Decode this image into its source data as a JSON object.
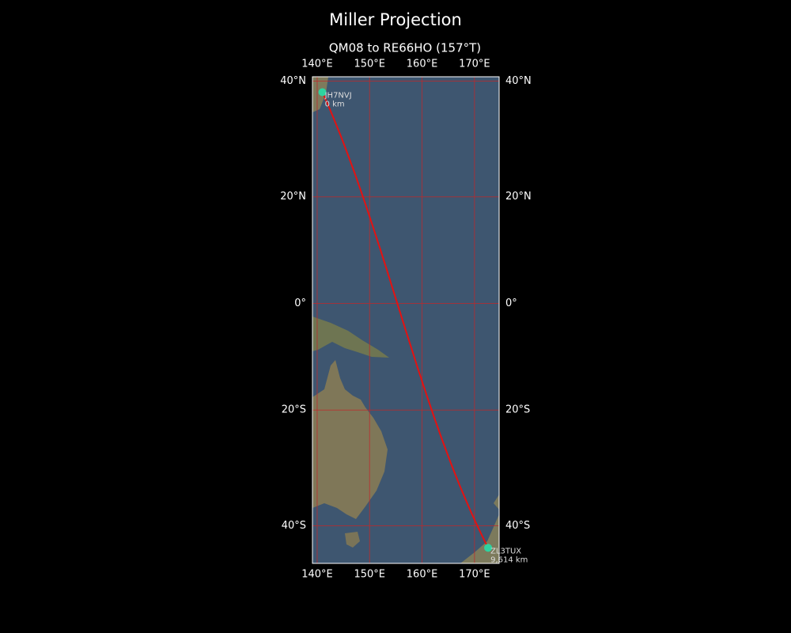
{
  "title": "Miller Projection",
  "subtitle": "QM08 to RE66HO (157°T)",
  "map": {
    "lonlim": [
      139.1,
      174.7
    ],
    "latlim": [
      -45.9,
      40.7
    ],
    "lonticks": [
      {
        "value": 140,
        "label": "140°E"
      },
      {
        "value": 150,
        "label": "150°E"
      },
      {
        "value": 160,
        "label": "160°E"
      },
      {
        "value": 170,
        "label": "170°E"
      }
    ],
    "latticks": [
      {
        "value": -40,
        "label": "40°S"
      },
      {
        "value": -20,
        "label": "20°S"
      },
      {
        "value": 0,
        "label": "0°"
      },
      {
        "value": 20,
        "label": "20°N"
      },
      {
        "value": 40,
        "label": "40°N"
      }
    ],
    "grid": true,
    "grid_color": "#c0282a",
    "route_color": "#e31212",
    "marker_color": "#2ed3a0",
    "stations": [
      {
        "call": "JH7NVJ",
        "distance": "0 km",
        "lon": 141.0,
        "lat": 38.2
      },
      {
        "call": "ZL3TUX",
        "distance": "9,614 km",
        "lon": 172.6,
        "lat": -43.5
      }
    ]
  }
}
